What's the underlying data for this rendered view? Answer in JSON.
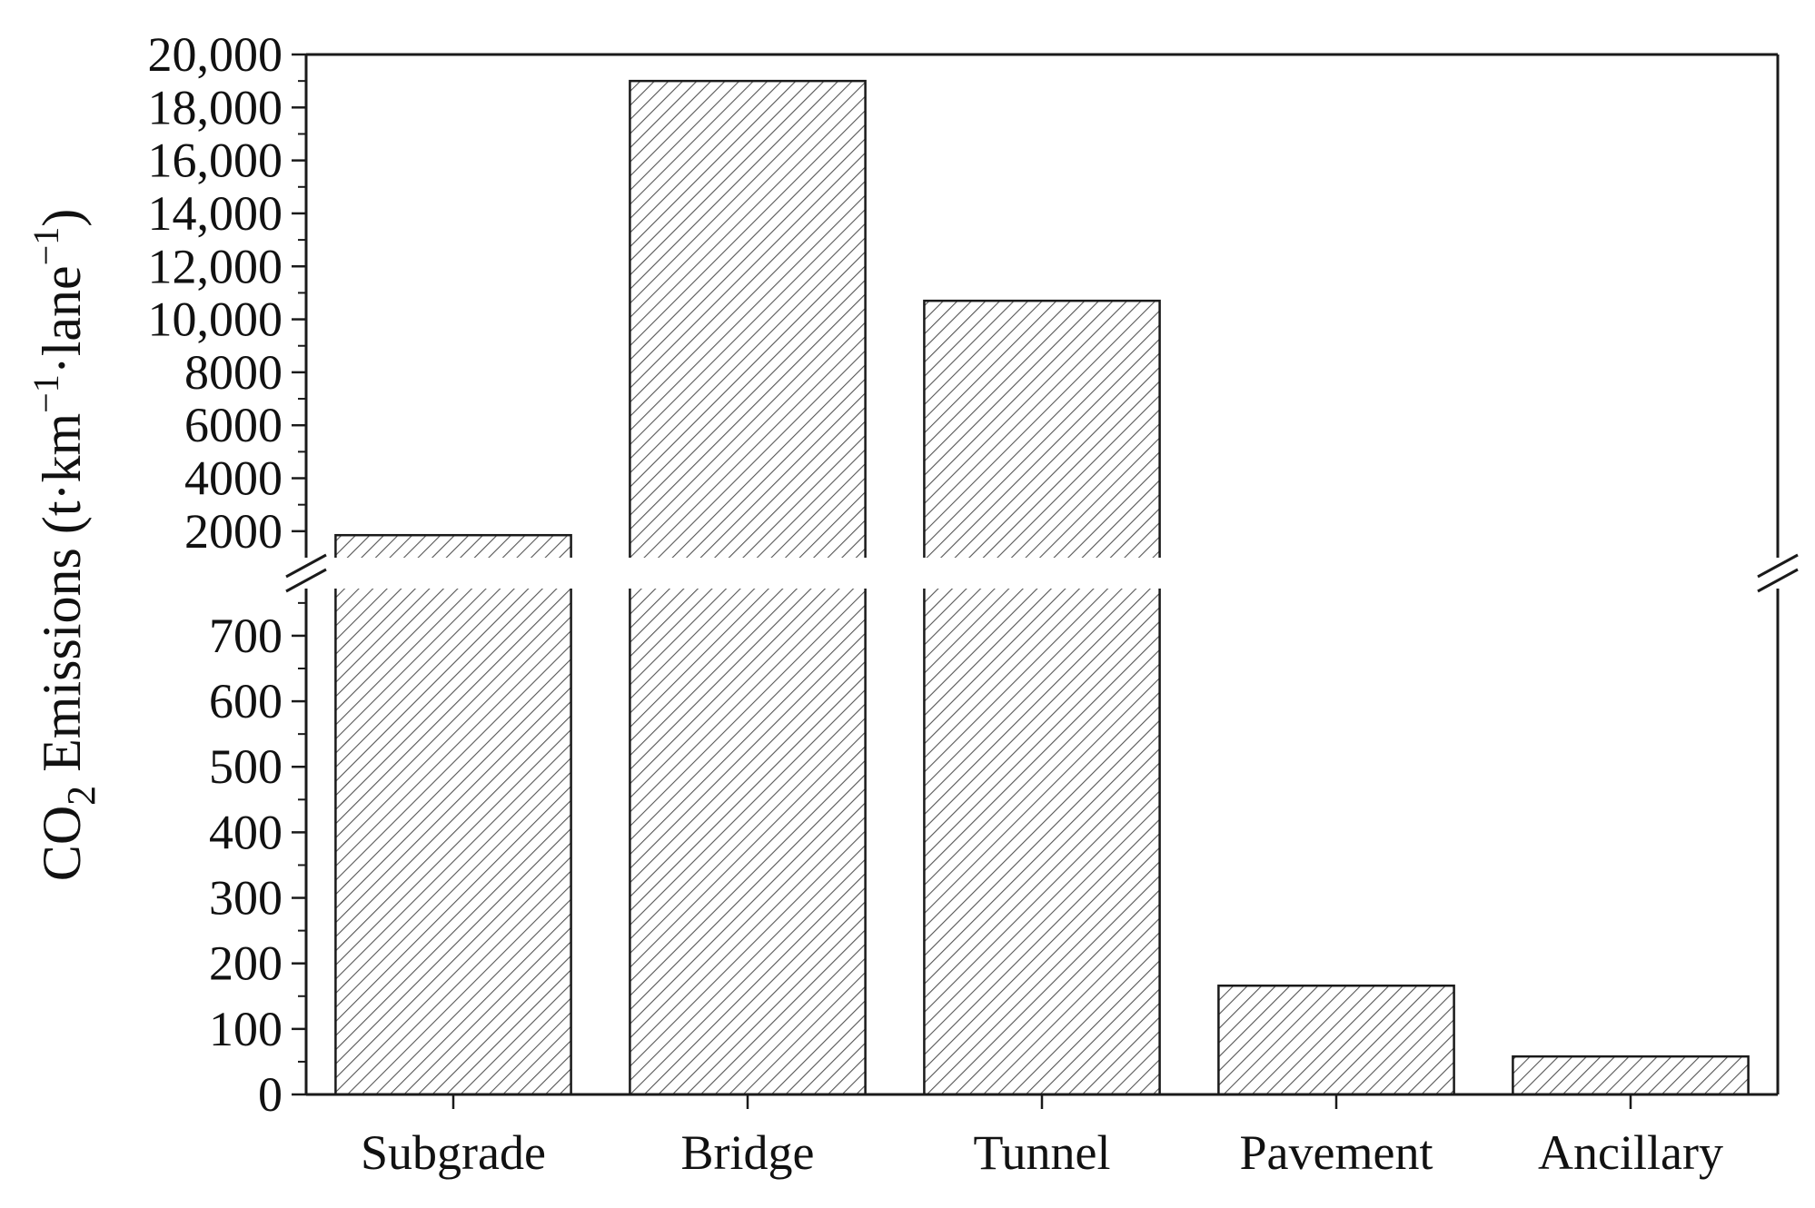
{
  "chart_data": {
    "type": "bar",
    "title": "",
    "xlabel": "",
    "ylabel_parts": {
      "prefix": "CO",
      "subscript": "2",
      "main": " Emissions (t·km",
      "sup1": "−1",
      "middle": "·lane",
      "sup2": "−1",
      "suffix": ")"
    },
    "categories": [
      "Subgrade",
      "Bridge",
      "Tunnel",
      "Pavement",
      "Ancillary"
    ],
    "values": [
      1850,
      19000,
      10700,
      166,
      58
    ],
    "y_axis_break": true,
    "lower_segment": {
      "ylim": [
        0,
        790
      ],
      "ticks": [
        0,
        100,
        200,
        300,
        400,
        500,
        600,
        700
      ],
      "tick_labels": [
        "0",
        "100",
        "200",
        "300",
        "400",
        "500",
        "600",
        "700"
      ]
    },
    "upper_segment": {
      "ylim": [
        1000,
        20000
      ],
      "ticks": [
        2000,
        4000,
        6000,
        8000,
        10000,
        12000,
        14000,
        16000,
        18000,
        20000
      ],
      "tick_labels": [
        "2000",
        "4000",
        "6000",
        "8000",
        "10,000",
        "12,000",
        "14,000",
        "16,000",
        "18,000",
        "20,000"
      ]
    },
    "bar_fill": "hatched",
    "colors": {
      "bar_edge": "#1a1a1a",
      "hatch": "#555555",
      "axis": "#1a1a1a"
    },
    "grid": false,
    "legend": "none"
  }
}
